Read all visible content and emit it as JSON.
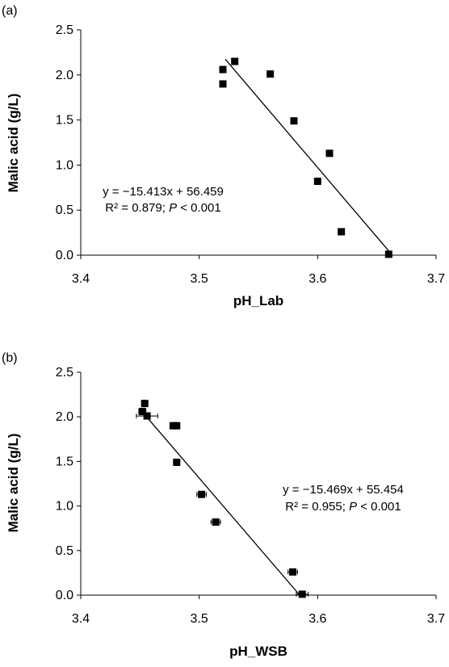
{
  "chart_data": [
    {
      "type": "scatter",
      "panel": "(a)",
      "xlabel": "pH_Lab",
      "ylabel": "Malic acid (g/L)",
      "xlim": [
        3.4,
        3.7
      ],
      "ylim": [
        0.0,
        2.5
      ],
      "xticks": [
        "3.4",
        "3.5",
        "3.6",
        "3.7"
      ],
      "yticks": [
        "0.0",
        "0.5",
        "1.0",
        "1.5",
        "2.0",
        "2.5"
      ],
      "points": [
        {
          "x": 3.52,
          "y": 2.06
        },
        {
          "x": 3.52,
          "y": 1.9
        },
        {
          "x": 3.53,
          "y": 2.15
        },
        {
          "x": 3.56,
          "y": 2.01
        },
        {
          "x": 3.58,
          "y": 1.49
        },
        {
          "x": 3.61,
          "y": 1.13
        },
        {
          "x": 3.6,
          "y": 0.82
        },
        {
          "x": 3.62,
          "y": 0.26
        },
        {
          "x": 3.66,
          "y": 0.01
        }
      ],
      "trendline": {
        "x_start": 3.522,
        "x_end": 3.66,
        "slope": -15.413,
        "intercept": 56.459
      },
      "equation": "y = −15.413x + 56.459",
      "stats": {
        "r2": "R² = 0.879; ",
        "p_label": "P",
        "p_value": " < 0.001"
      }
    },
    {
      "type": "scatter",
      "panel": "(b)",
      "xlabel": "pH_WSB",
      "ylabel": "Malic acid (g/L)",
      "xlim": [
        3.4,
        3.7
      ],
      "ylim": [
        0.0,
        2.5
      ],
      "xticks": [
        "3.4",
        "3.5",
        "3.6",
        "3.7"
      ],
      "yticks": [
        "0.0",
        "0.5",
        "1.0",
        "1.5",
        "2.0",
        "2.5"
      ],
      "points": [
        {
          "x": 3.454,
          "y": 2.15,
          "xerr": 0.0
        },
        {
          "x": 3.452,
          "y": 2.06,
          "xerr": 0.003
        },
        {
          "x": 3.456,
          "y": 2.01,
          "xerr": 0.009
        },
        {
          "x": 3.478,
          "y": 1.9,
          "xerr": 0.002
        },
        {
          "x": 3.481,
          "y": 1.9,
          "xerr": 0.002
        },
        {
          "x": 3.481,
          "y": 1.49,
          "xerr": 0.0
        },
        {
          "x": 3.502,
          "y": 1.13,
          "xerr": 0.004
        },
        {
          "x": 3.514,
          "y": 0.82,
          "xerr": 0.004
        },
        {
          "x": 3.579,
          "y": 0.26,
          "xerr": 0.004
        },
        {
          "x": 3.587,
          "y": 0.01,
          "xerr": 0.005
        }
      ],
      "trendline": {
        "x_start": 3.456,
        "x_end": 3.585,
        "slope": -15.469,
        "intercept": 55.454
      },
      "equation": "y = −15.469x + 55.454",
      "stats": {
        "r2": "R² = 0.955; ",
        "p_label": "P",
        "p_value": " < 0.001"
      }
    }
  ]
}
